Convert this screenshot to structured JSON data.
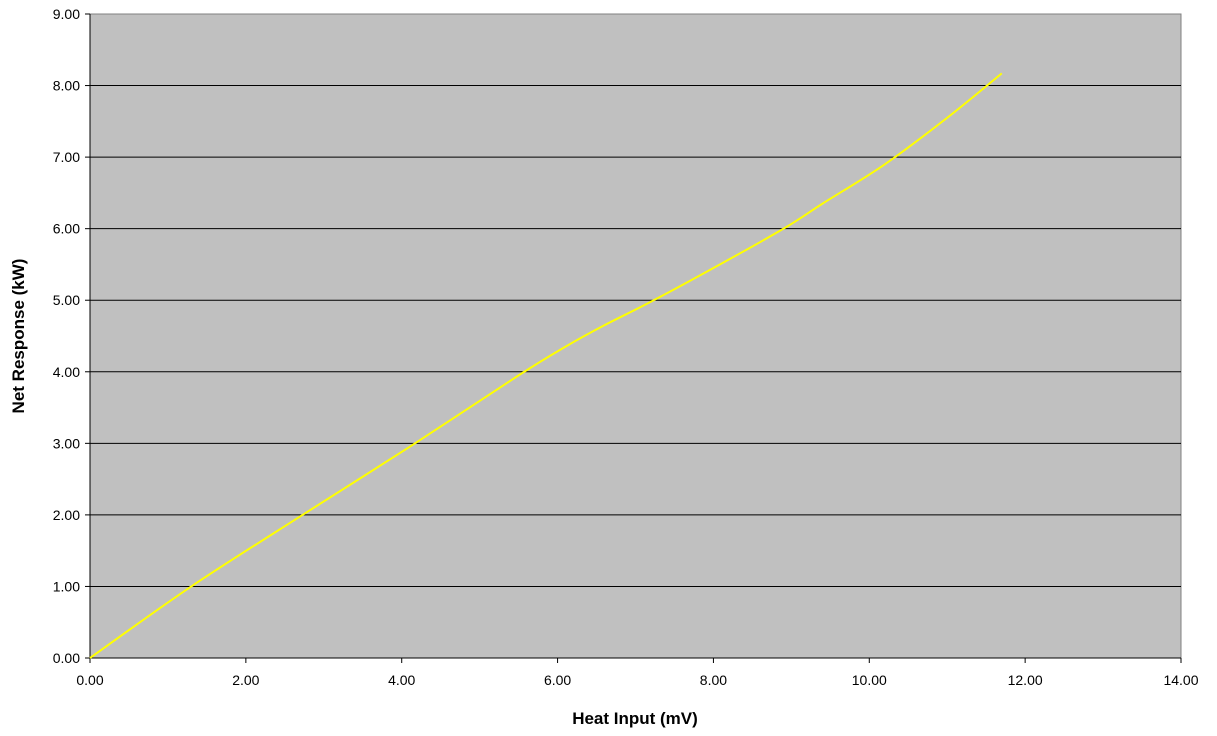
{
  "chart_data": {
    "type": "line",
    "title": "",
    "xlabel": "Heat Input (mV)",
    "ylabel": "Net Response (kW)",
    "xlim": [
      0,
      14
    ],
    "ylim": [
      0,
      9
    ],
    "x_ticks": [
      "0.00",
      "2.00",
      "4.00",
      "6.00",
      "8.00",
      "10.00",
      "12.00",
      "14.00"
    ],
    "y_ticks": [
      "0.00",
      "1.00",
      "2.00",
      "3.00",
      "4.00",
      "5.00",
      "6.00",
      "7.00",
      "8.00",
      "9.00"
    ],
    "grid": "horizontal",
    "legend": "none",
    "colors": {
      "plot_background": "#C0C0C0",
      "line": "#FFFF00",
      "gridline": "#000000"
    },
    "series": [
      {
        "x": [
          0.0,
          1.3,
          2.8,
          4.1,
          5.5,
          6.1,
          6.6,
          7.2,
          8.0,
          8.9,
          9.4,
          10.2,
          11.0,
          11.7
        ],
        "y": [
          0.0,
          1.0,
          2.05,
          2.95,
          3.95,
          4.35,
          4.65,
          4.98,
          5.45,
          6.0,
          6.35,
          6.9,
          7.55,
          8.17
        ]
      }
    ]
  }
}
